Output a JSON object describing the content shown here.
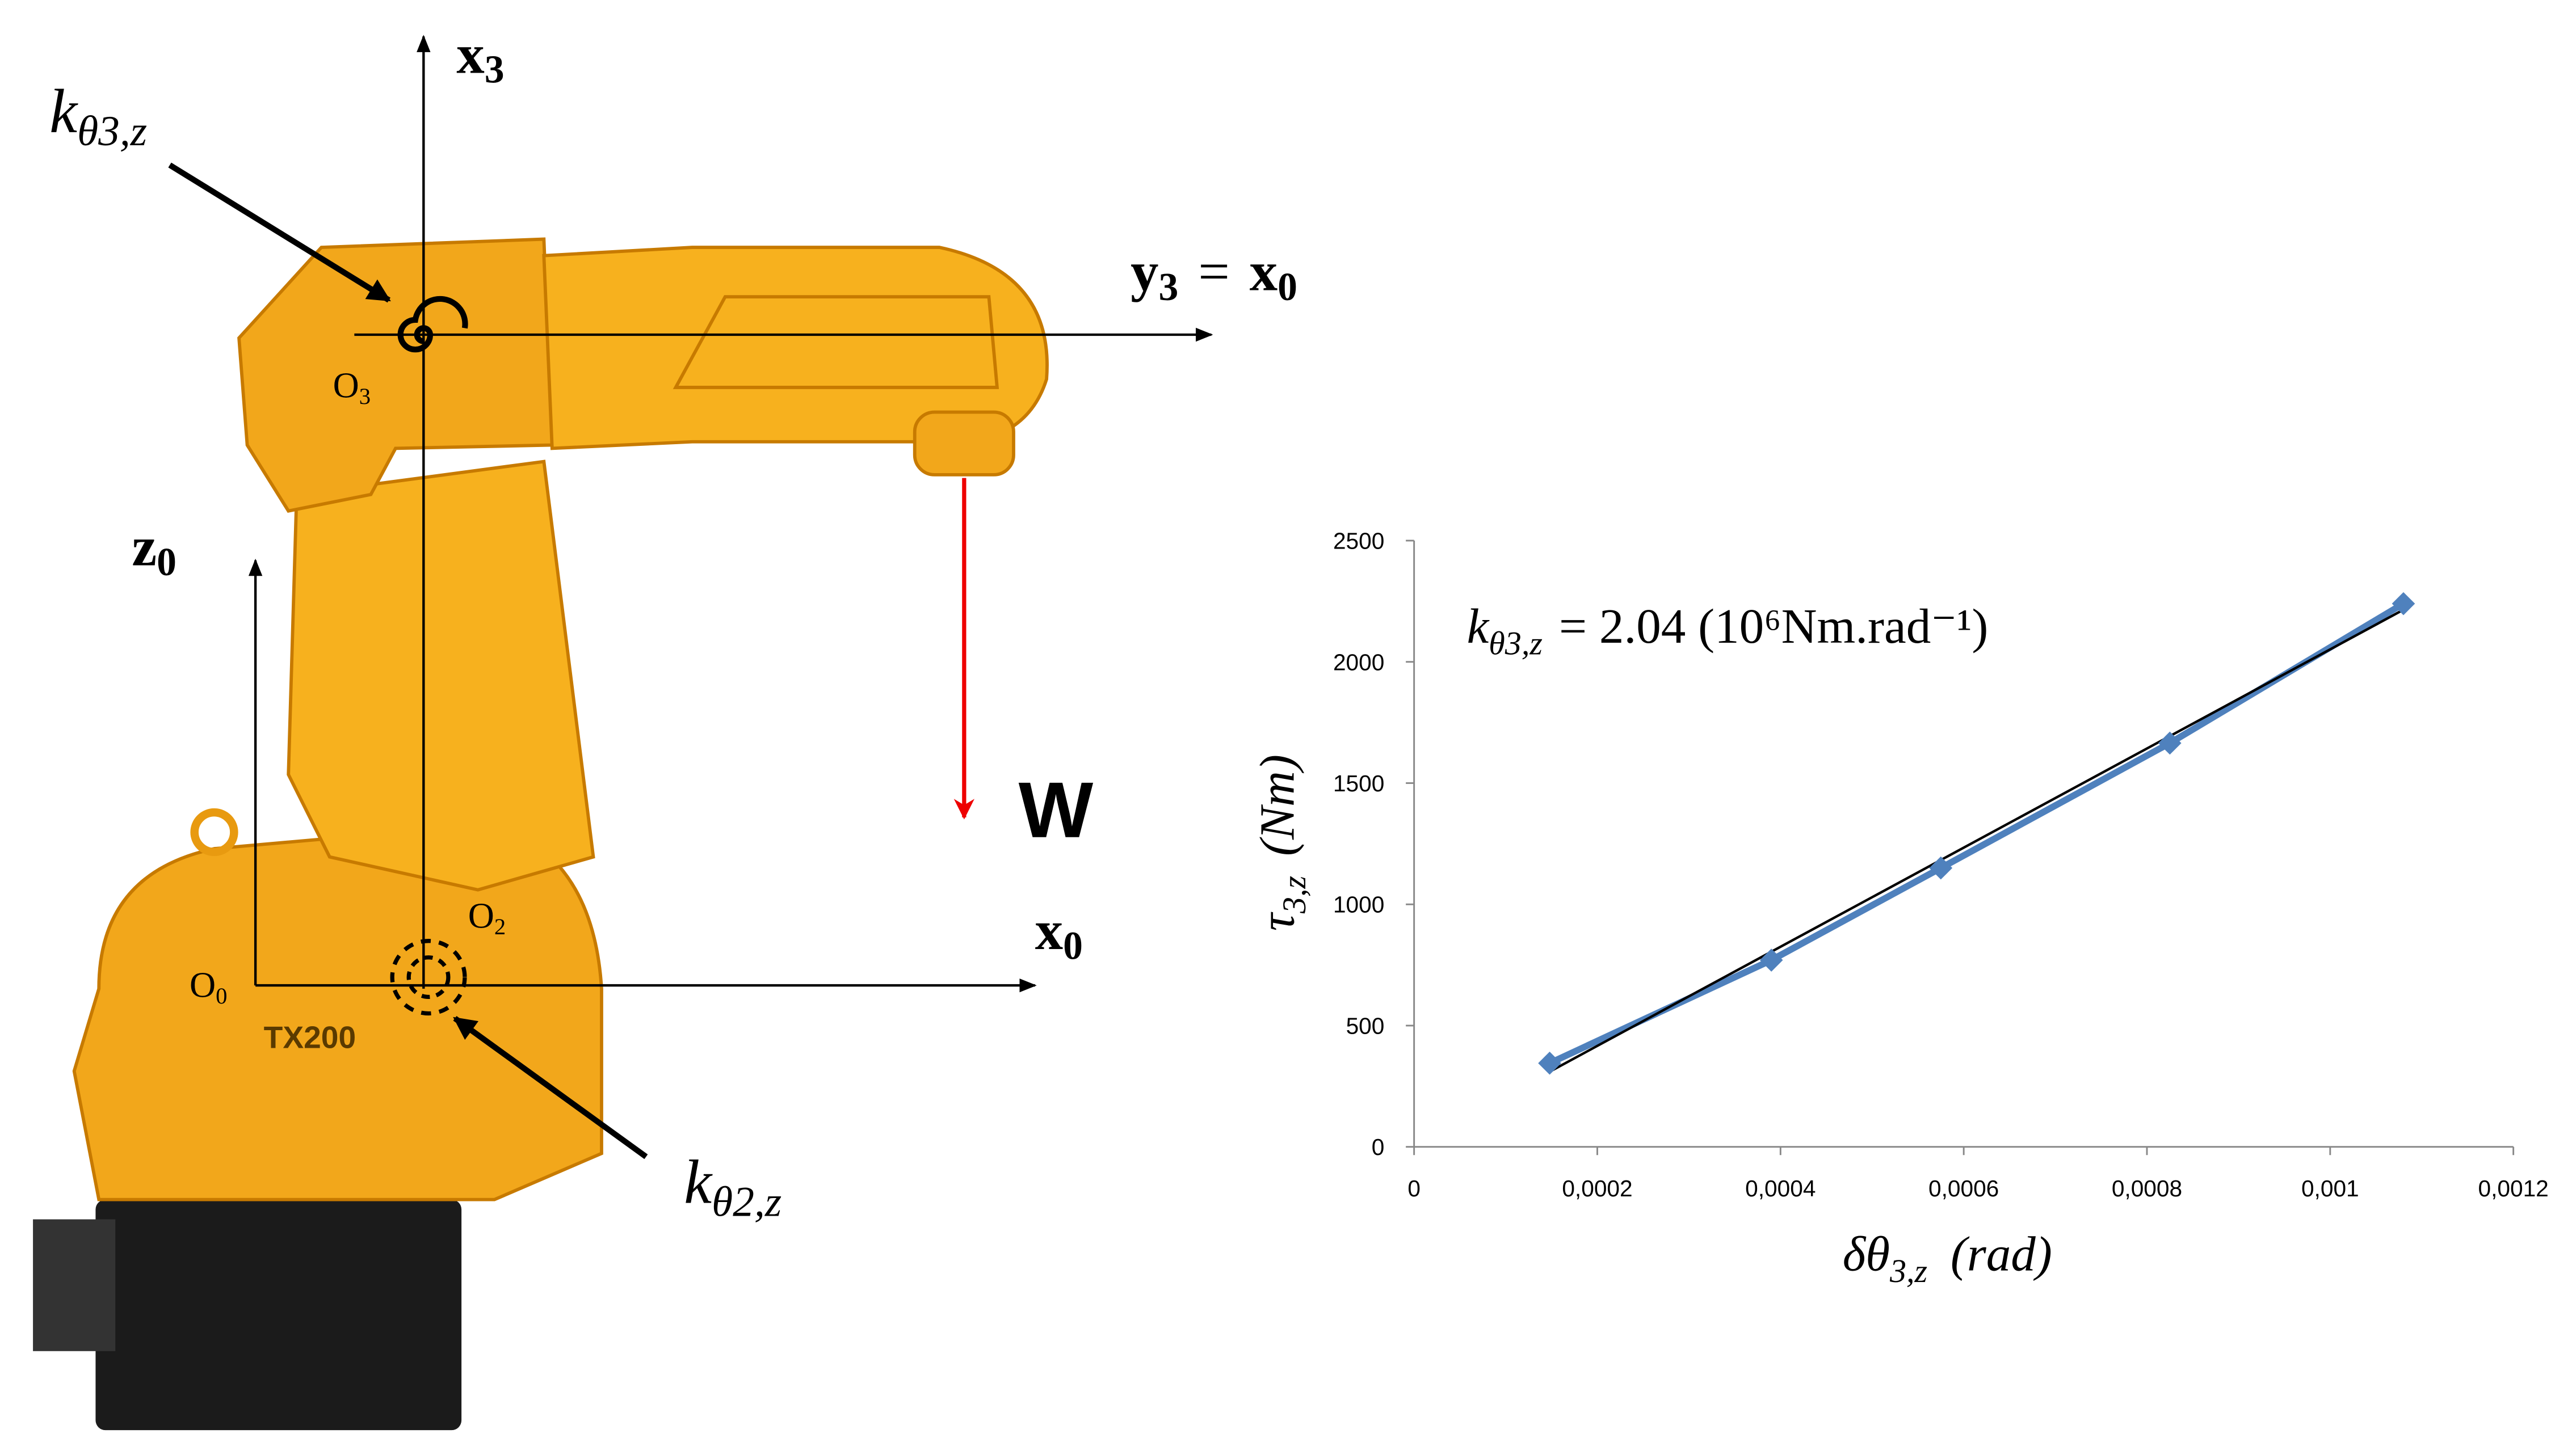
{
  "diagram": {
    "x3_symbol": "x",
    "x3_sub": "3",
    "y3_symbol": "y",
    "y3_sub": "3",
    "equals": "=",
    "x0_symbol": "x",
    "x0_sub": "0",
    "z0_symbol": "z",
    "z0_sub": "0",
    "x0b_symbol": "x",
    "x0b_sub": "0",
    "force": "W",
    "o3": "O",
    "o3_sub": "3",
    "o2": "O",
    "o2_sub": "2",
    "o0": "O",
    "o0_sub": "0",
    "robot_label": "TX200",
    "k3_symbol": "k",
    "k3_sub": "θ3,z",
    "k2_symbol": "k",
    "k2_sub": "θ2,z"
  },
  "chart_data": {
    "type": "line",
    "annotation": {
      "symbol": "k",
      "sub": "θ3,z",
      "text": "= 2.04 (10⁶Nm.rad⁻¹)"
    },
    "x_label": {
      "symbol": "δθ",
      "sub": "3,z",
      "unit": "(rad)"
    },
    "y_label": {
      "symbol": "τ",
      "sub": "3,z",
      "unit": "(Nm)"
    },
    "x": [
      0.000148,
      0.00039,
      0.000575,
      0.000825,
      0.00108
    ],
    "values": [
      345,
      770,
      1150,
      1665,
      2240
    ],
    "color": "#4f81bd",
    "trendline": {
      "x": [
        0.000148,
        0.00108
      ],
      "y": [
        310,
        2215
      ],
      "color": "#000000"
    },
    "xlim": [
      0,
      0.0012
    ],
    "ylim": [
      0,
      2500
    ],
    "xticks": [
      0,
      {
        "value": 0.0002,
        "label": "0,0002"
      },
      {
        "value": 0.0004,
        "label": "0,0004"
      },
      {
        "value": 0.0006,
        "label": "0,0006"
      },
      {
        "value": 0.0008,
        "label": "0,0008"
      },
      {
        "value": 0.001,
        "label": "0,001"
      },
      {
        "value": 0.0012,
        "label": "0,0012"
      }
    ],
    "yticks": [
      0,
      500,
      1000,
      1500,
      2000,
      2500
    ]
  }
}
